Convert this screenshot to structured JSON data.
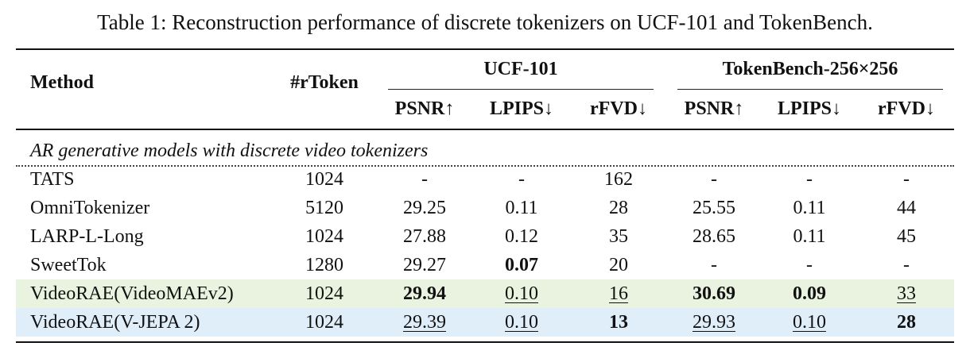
{
  "caption": "Table 1: Reconstruction performance of discrete tokenizers on UCF-101 and TokenBench.",
  "header": {
    "method": "Method",
    "rtoken": "#rToken",
    "group1": "UCF-101",
    "group2": "TokenBench-256×256",
    "cols": [
      "PSNR↑",
      "LPIPS↓",
      "rFVD↓",
      "PSNR↑",
      "LPIPS↓",
      "rFVD↓"
    ]
  },
  "section_label": "AR generative models with discrete video tokenizers",
  "rows": [
    {
      "method": "TATS",
      "rtoken": "1024",
      "vals": [
        "-",
        "-",
        "162",
        "-",
        "-",
        "-"
      ]
    },
    {
      "method": "OmniTokenizer",
      "rtoken": "5120",
      "vals": [
        "29.25",
        "0.11",
        "28",
        "25.55",
        "0.11",
        "44"
      ]
    },
    {
      "method": "LARP-L-Long",
      "rtoken": "1024",
      "vals": [
        "27.88",
        "0.12",
        "35",
        "28.65",
        "0.11",
        "45"
      ]
    },
    {
      "method": "SweetTok",
      "rtoken": "1280",
      "vals": [
        "29.27",
        "0.07",
        "20",
        "-",
        "-",
        "-"
      ]
    },
    {
      "method": "VideoRAE(VideoMAEv2)",
      "rtoken": "1024",
      "vals": [
        "29.94",
        "0.10",
        "16",
        "30.69",
        "0.09",
        "33"
      ]
    },
    {
      "method": "VideoRAE(V-JEPA 2)",
      "rtoken": "1024",
      "vals": [
        "29.39",
        "0.10",
        "13",
        "29.93",
        "0.10",
        "28"
      ]
    }
  ],
  "highlight_colors": {
    "videorae_videomaev2": "#eaf3df",
    "videorae_vjepa2": "#e0eef9"
  }
}
